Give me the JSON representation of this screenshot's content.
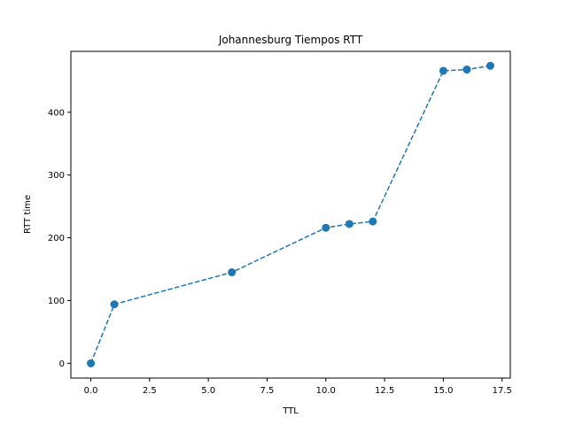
{
  "chart_data": {
    "type": "line",
    "title": "Johannesburg Tiempos RTT",
    "xlabel": "TTL",
    "ylabel": "RTT time",
    "xlim": [
      -0.85,
      17.85
    ],
    "ylim": [
      -23.5,
      497
    ],
    "xticks": [
      0.0,
      2.5,
      5.0,
      7.5,
      10.0,
      12.5,
      15.0,
      17.5
    ],
    "xtick_labels": [
      "0.0",
      "2.5",
      "5.0",
      "7.5",
      "10.0",
      "12.5",
      "15.0",
      "17.5"
    ],
    "yticks": [
      0,
      100,
      200,
      300,
      400
    ],
    "ytick_labels": [
      "0",
      "100",
      "200",
      "300",
      "400"
    ],
    "grid": false,
    "series": [
      {
        "style": "dashed-with-circle-markers",
        "color": "#1f77b4",
        "x": [
          0,
          1,
          6,
          10,
          11,
          12,
          15,
          16,
          17
        ],
        "y": [
          0,
          94,
          145,
          216,
          222,
          226,
          466,
          468,
          474
        ]
      }
    ]
  }
}
